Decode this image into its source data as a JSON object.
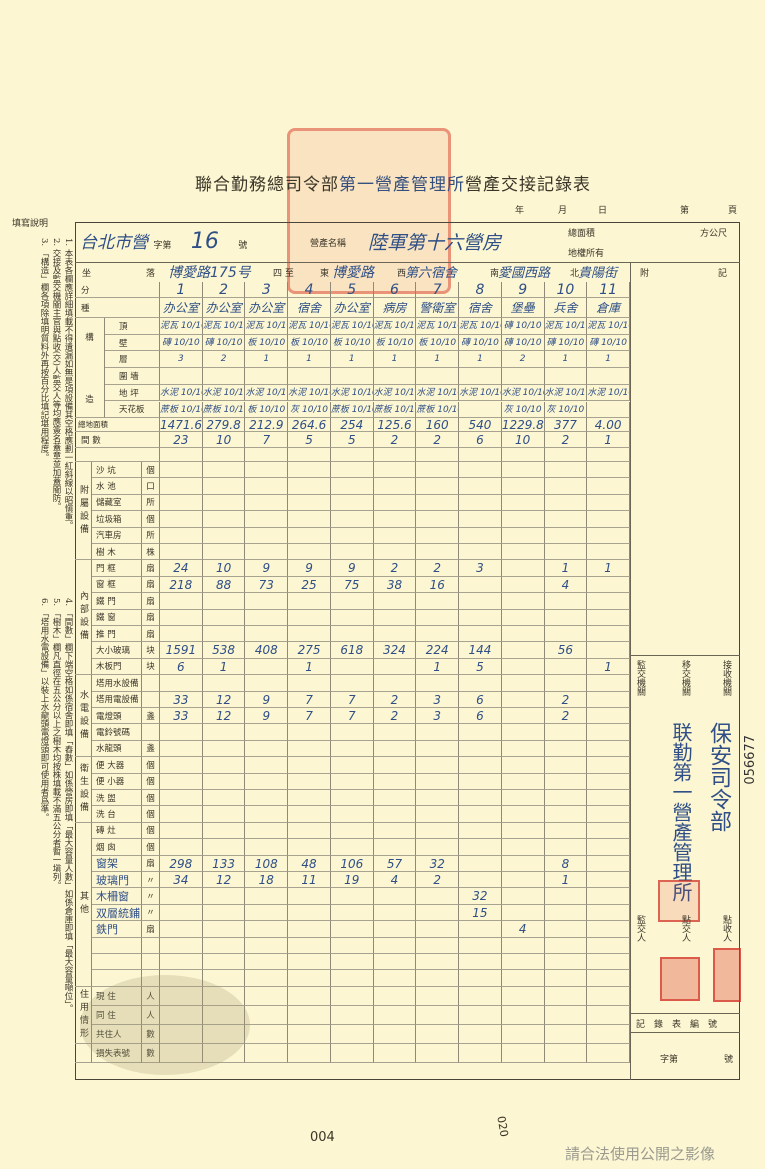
{
  "title": {
    "printed_left": "聯合勤務總司令部",
    "handwritten": "第一營產管理所",
    "printed_right": "營產交接記錄表"
  },
  "date_line": {
    "year": "年",
    "month": "月",
    "day": "日",
    "page_prefix": "第",
    "page_suffix": "頁"
  },
  "header": {
    "camp_prefix": "台北市營",
    "zi_di": "字第",
    "number": "16",
    "hao": "號",
    "name_label": "營產名稱",
    "name_value": "陸軍第十六營房",
    "area_label": "總面積",
    "area_unit": "方公尺",
    "land_owner_label": "地權所有"
  },
  "location": {
    "label_a": "坐",
    "label_b": "落",
    "address": "博愛路175号",
    "four_label": "四 至",
    "east_label": "東",
    "east": "博愛路",
    "west_label": "西",
    "west": "第六宿舍",
    "south_label": "南",
    "south": "愛國西路",
    "north_label": "北",
    "north": "貴陽街",
    "remarks_label_a": "附",
    "remarks_label_b": "記"
  },
  "numbers_row": {
    "label_a": "分",
    "label_b": "號",
    "values": [
      "1",
      "2",
      "3",
      "4",
      "5",
      "6",
      "7",
      "8",
      "9",
      "10",
      "11"
    ]
  },
  "types_row": {
    "label_a": "種",
    "label_b": "類",
    "values": [
      "办公室",
      "办公室",
      "办公室",
      "宿舍",
      "办公室",
      "病房",
      "警衛室",
      "宿舍",
      "堡壘",
      "兵舍",
      "倉庫"
    ]
  },
  "construction": {
    "group_top": "構",
    "group_bottom": "造",
    "rows": [
      {
        "label": "頂",
        "values": [
          "泥瓦 10/10",
          "泥瓦 10/10",
          "泥瓦 10/10",
          "泥瓦 10/10",
          "泥瓦 10/10",
          "泥瓦 10/10",
          "泥瓦 10/10",
          "泥瓦 10/10",
          "磚 10/10",
          "泥瓦 10/10",
          "泥瓦 10/10"
        ]
      },
      {
        "label": "壁",
        "values": [
          "磚 10/10",
          "磚 10/10",
          "板 10/10",
          "板 10/10",
          "板 10/10",
          "板 10/10",
          "板 10/10",
          "磚 10/10",
          "磚 10/10",
          "磚 10/10",
          "磚 10/10"
        ]
      },
      {
        "label": "層",
        "values": [
          "3",
          "2",
          "1",
          "1",
          "1",
          "1",
          "1",
          "1",
          "2",
          "1",
          "1"
        ]
      },
      {
        "label": "圍 墻",
        "values": [
          "",
          "",
          "",
          "",
          "",
          "",
          "",
          "",
          "",
          "",
          ""
        ]
      },
      {
        "label": "地 坪",
        "values": [
          "水泥 10/10",
          "水泥 10/10",
          "水泥 10/10",
          "水泥 10/10",
          "水泥 10/10",
          "水泥 10/10",
          "水泥 10/10",
          "水泥 10/10",
          "水泥 10/10",
          "水泥 10/10",
          "水泥 10/10"
        ]
      },
      {
        "label": "天花板",
        "values": [
          "蔗板 10/10",
          "蔗板 10/10",
          "板 10/10",
          "灰 10/10",
          "蔗板 10/10",
          "蔗板 10/10",
          "蔗板 10/10",
          "",
          "灰 10/10",
          "灰 10/10",
          ""
        ]
      }
    ]
  },
  "floor_area": {
    "label": "總地面積",
    "unit": "方公尺",
    "values": [
      "1471.6",
      "279.8",
      "212.9",
      "264.6",
      "254",
      "125.6",
      "160",
      "540",
      "1229.8",
      "377",
      "4.00"
    ]
  },
  "room_count": {
    "label": "間 數",
    "values": [
      "23",
      "10",
      "7",
      "5",
      "5",
      "2",
      "2",
      "6",
      "10",
      "2",
      "1"
    ]
  },
  "groups": [
    {
      "label": "附屬設備",
      "rows": [
        {
          "label": "沙 坑",
          "unit": "個"
        },
        {
          "label": "水 池",
          "unit": "口"
        },
        {
          "label": "儲藏室",
          "unit": "所"
        },
        {
          "label": "垃圾箱",
          "unit": "個"
        },
        {
          "label": "汽車房",
          "unit": "所"
        },
        {
          "label": "樹 木",
          "unit": "株"
        }
      ]
    },
    {
      "label": "內部設備",
      "rows": [
        {
          "label": "門 框",
          "unit": "扇",
          "values": [
            "24",
            "10",
            "9",
            "9",
            "9",
            "2",
            "2",
            "3",
            "",
            "1",
            "1"
          ]
        },
        {
          "label": "窗 框",
          "unit": "扇",
          "values": [
            "218",
            "88",
            "73",
            "25",
            "75",
            "38",
            "16",
            "",
            "",
            "4",
            ""
          ]
        },
        {
          "label": "鐵 門",
          "unit": "扇"
        },
        {
          "label": "鐵 窗",
          "unit": "扇"
        },
        {
          "label": "推 門",
          "unit": "扇"
        },
        {
          "label": "大小玻璃",
          "unit": "块",
          "values": [
            "1591",
            "538",
            "408",
            "275",
            "618",
            "324",
            "224",
            "144",
            "",
            "56",
            ""
          ]
        },
        {
          "label": "木板門",
          "unit": "块",
          "values": [
            "6",
            "1",
            "",
            "1",
            "",
            "",
            "1",
            "5",
            "",
            "",
            "1"
          ]
        }
      ]
    },
    {
      "label": "水電設備",
      "rows": [
        {
          "label": "塔用水設備",
          "unit": ""
        },
        {
          "label": "塔用電設備",
          "unit": "",
          "values": [
            "33",
            "12",
            "9",
            "7",
            "7",
            "2",
            "3",
            "6",
            "",
            "2",
            ""
          ]
        },
        {
          "label": "電燈頭",
          "unit": "盞",
          "values": [
            "33",
            "12",
            "9",
            "7",
            "7",
            "2",
            "3",
            "6",
            "",
            "2",
            ""
          ]
        },
        {
          "label": "電鈴號碼",
          "unit": ""
        },
        {
          "label": "水龍頭",
          "unit": "盞"
        }
      ]
    },
    {
      "label": "衛生設備",
      "rows": [
        {
          "label": "便 大器",
          "unit": "個"
        },
        {
          "label": "便 小器",
          "unit": "個"
        },
        {
          "label": "洗 盥",
          "unit": "個"
        },
        {
          "label": "洗 台",
          "unit": "個"
        }
      ]
    },
    {
      "label": "其他",
      "rows": [
        {
          "label": "磚 灶",
          "unit": "個"
        },
        {
          "label": "烟 囪",
          "unit": "個"
        },
        {
          "label": "窗架",
          "unit": "扇",
          "hw": true,
          "values": [
            "298",
            "133",
            "108",
            "48",
            "106",
            "57",
            "32",
            "",
            "",
            "8",
            ""
          ]
        },
        {
          "label": "玻璃門",
          "unit": "〃",
          "hw": true,
          "values": [
            "34",
            "12",
            "18",
            "11",
            "19",
            "4",
            "2",
            "",
            "",
            "1",
            ""
          ]
        },
        {
          "label": "木柵窗",
          "unit": "〃",
          "hw": true,
          "values": [
            "",
            "",
            "",
            "",
            "",
            "",
            "",
            "32",
            "",
            "",
            ""
          ]
        },
        {
          "label": "双層統鋪",
          "unit": "〃",
          "hw": true,
          "values": [
            "",
            "",
            "",
            "",
            "",
            "",
            "",
            "15",
            "",
            "",
            ""
          ]
        },
        {
          "label": "鉄門",
          "unit": "扇",
          "hw": true,
          "values": [
            "",
            "",
            "",
            "",
            "",
            "",
            "",
            "",
            "4",
            "",
            ""
          ]
        },
        {
          "label": "",
          "unit": ""
        },
        {
          "label": "",
          "unit": ""
        },
        {
          "label": "",
          "unit": ""
        }
      ]
    },
    {
      "label": "住用情形",
      "rows": [
        {
          "label": "現 住",
          "unit": "人"
        },
        {
          "label": "同 住",
          "unit": "人"
        },
        {
          "label": "共住人",
          "unit": "數"
        }
      ]
    },
    {
      "label": "",
      "rows": [
        {
          "label": "損失表號",
          "unit": "數"
        }
      ]
    }
  ],
  "right_panel": {
    "supervising_org": "監交機關",
    "transferring_org": "移交機關",
    "receiving_org": "接收機關",
    "transferring_value": "联勤第一營產管理所",
    "receiving_value": "保安司令部",
    "supervisor": "監交人",
    "handover_person": "點交人",
    "receiver": "點收人",
    "record_no": "記錄表編號",
    "zi_di": "字第",
    "hao": "號",
    "serial": "056677"
  },
  "instructions": {
    "heading": "填寫說明",
    "items": [
      "1. 本表各欄應詳細填載不得遺漏如無是項設備其空格應劃一紅斜線以昭愼重。",
      "2. 交接及監交機關主官與點收(交)人監交人等均應簽名蓋章並加蓋關防。",
      "3. 「構造」欄各項除填明質料外再按百分比填記堪用程度。",
      "4. 「間數」欄下端空格如係宿舍即填「舂數」如係營房即填「最大容量人數」如係倉庫即填「最大容量噸位」。",
      "5. 「樹木」欄凡直徑在五公分以上之樹木均按株填載不滿五公分者暫一塡列。",
      "6. 「塔用水電設備」以裝上水龍頭電燈頭即可使用者爲準。"
    ]
  },
  "page_number": "004",
  "corner_mark": "020",
  "watermark": "請合法使用公開之影像"
}
